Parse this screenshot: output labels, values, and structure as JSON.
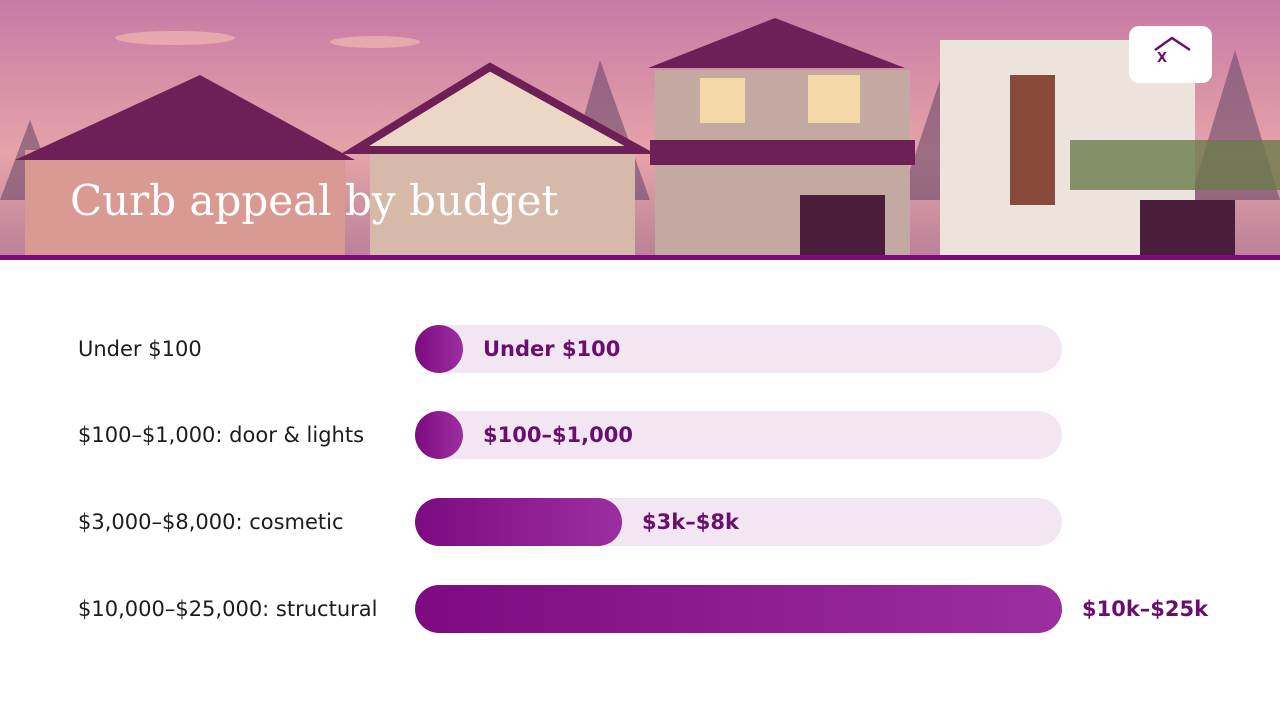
{
  "logo": "X",
  "chart_data": {
    "type": "bar",
    "orientation": "horizontal",
    "title": "Curb appeal by budget",
    "categories": [
      "Under $100",
      "$100–$1,000: door & lights",
      "$3,000–$8,000: cosmetic",
      "$10,000–$25,000: structural"
    ],
    "values": [
      100,
      1000,
      8000,
      25000
    ],
    "value_labels": [
      "Under $100",
      "$100–$1,000",
      "$3k–$8k",
      "$10k–$25k"
    ],
    "xlim": [
      0,
      25000
    ],
    "color": "#7d0a80",
    "track_color": "#f3e6f3",
    "label_color": "#6b0f6e"
  }
}
